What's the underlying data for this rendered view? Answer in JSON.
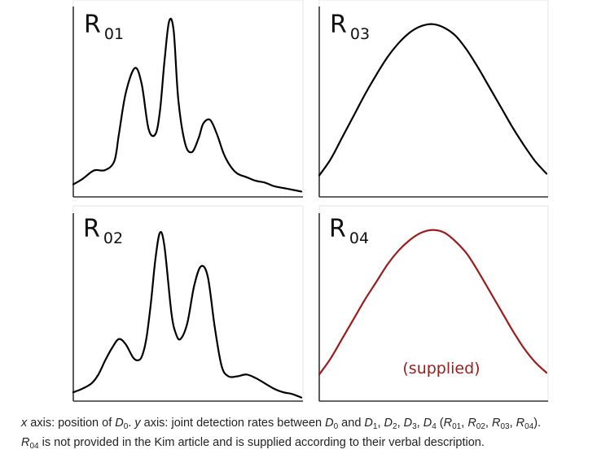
{
  "chart_data": [
    {
      "type": "line",
      "title": "R 01",
      "title_main": "R",
      "title_sub": "01",
      "color": "#000000",
      "xlim": [
        0,
        1
      ],
      "ylim": [
        0,
        1
      ],
      "x": [
        0,
        0.04,
        0.08,
        0.1,
        0.14,
        0.18,
        0.2,
        0.23,
        0.27,
        0.3,
        0.33,
        0.36,
        0.38,
        0.4,
        0.42,
        0.44,
        0.46,
        0.49,
        0.52,
        0.55,
        0.57,
        0.6,
        0.63,
        0.66,
        0.69,
        0.72,
        0.76,
        0.8,
        0.84,
        0.88,
        0.92,
        0.96,
        1.0
      ],
      "y": [
        0.07,
        0.1,
        0.14,
        0.15,
        0.15,
        0.2,
        0.35,
        0.58,
        0.72,
        0.63,
        0.38,
        0.35,
        0.48,
        0.76,
        0.98,
        0.93,
        0.55,
        0.3,
        0.25,
        0.33,
        0.41,
        0.43,
        0.35,
        0.24,
        0.17,
        0.13,
        0.11,
        0.09,
        0.08,
        0.06,
        0.05,
        0.04,
        0.03
      ]
    },
    {
      "type": "line",
      "title": "R 03",
      "title_main": "R",
      "title_sub": "03",
      "color": "#000000",
      "xlim": [
        0,
        1
      ],
      "ylim": [
        0,
        1
      ],
      "x": [
        0,
        0.05,
        0.1,
        0.15,
        0.2,
        0.25,
        0.3,
        0.35,
        0.4,
        0.45,
        0.5,
        0.55,
        0.6,
        0.65,
        0.7,
        0.75,
        0.8,
        0.85,
        0.9,
        0.95,
        1.0
      ],
      "y": [
        0.12,
        0.21,
        0.33,
        0.45,
        0.57,
        0.68,
        0.78,
        0.86,
        0.92,
        0.955,
        0.965,
        0.945,
        0.9,
        0.82,
        0.72,
        0.61,
        0.5,
        0.39,
        0.29,
        0.2,
        0.13
      ]
    },
    {
      "type": "line",
      "title": "R 02",
      "title_main": "R",
      "title_sub": "02",
      "color": "#000000",
      "xlim": [
        0,
        1
      ],
      "ylim": [
        0,
        1
      ],
      "x": [
        0,
        0.04,
        0.08,
        0.11,
        0.14,
        0.17,
        0.2,
        0.23,
        0.26,
        0.28,
        0.3,
        0.32,
        0.34,
        0.36,
        0.38,
        0.4,
        0.43,
        0.45,
        0.47,
        0.5,
        0.53,
        0.56,
        0.59,
        0.62,
        0.65,
        0.68,
        0.72,
        0.76,
        0.8,
        0.84,
        0.88,
        0.92,
        0.96,
        1.0
      ],
      "y": [
        0.05,
        0.07,
        0.1,
        0.15,
        0.23,
        0.3,
        0.35,
        0.32,
        0.25,
        0.23,
        0.25,
        0.35,
        0.55,
        0.8,
        0.95,
        0.87,
        0.5,
        0.38,
        0.35,
        0.44,
        0.65,
        0.76,
        0.7,
        0.42,
        0.2,
        0.14,
        0.14,
        0.15,
        0.13,
        0.1,
        0.07,
        0.05,
        0.04,
        0.02
      ]
    },
    {
      "type": "line",
      "title": "R 04",
      "title_main": "R",
      "title_sub": "04",
      "annotation": "(supplied)",
      "color": "#9b1c1c",
      "xlim": [
        0,
        1
      ],
      "ylim": [
        0,
        1
      ],
      "x": [
        0,
        0.05,
        0.1,
        0.15,
        0.2,
        0.25,
        0.3,
        0.35,
        0.4,
        0.45,
        0.5,
        0.55,
        0.6,
        0.65,
        0.7,
        0.75,
        0.8,
        0.85,
        0.9,
        0.95,
        1.0
      ],
      "y": [
        0.15,
        0.24,
        0.35,
        0.46,
        0.57,
        0.67,
        0.77,
        0.85,
        0.91,
        0.95,
        0.965,
        0.95,
        0.9,
        0.83,
        0.73,
        0.62,
        0.51,
        0.4,
        0.3,
        0.22,
        0.16
      ]
    }
  ],
  "caption": {
    "line1": {
      "x_label": "x",
      "t1": " axis: position of ",
      "d0a": "D",
      "d0a_sub": "0",
      "t2": ". ",
      "y_label": "y",
      "t3": " axis: joint detection rates between ",
      "d0b": "D",
      "d0b_sub": "0",
      "t4": " and ",
      "d1": "D",
      "d1_sub": "1",
      "sep1": ", ",
      "d2": "D",
      "d2_sub": "2",
      "sep2": ", ",
      "d3": "D",
      "d3_sub": "3",
      "sep3": ", ",
      "d4": "D",
      "d4_sub": "4",
      "t5": " (",
      "r1": "R",
      "r1_sub": "01",
      "sep4": ", ",
      "r2": "R",
      "r2_sub": "02",
      "sep5": ", ",
      "r3": "R",
      "r3_sub": "03",
      "sep6": ", ",
      "r4": "R",
      "r4_sub": "04",
      "t6": ")."
    },
    "line2": {
      "r": "R",
      "r_sub": "04",
      "text": " is not provided in the Kim article and is supplied according to their verbal description."
    }
  }
}
